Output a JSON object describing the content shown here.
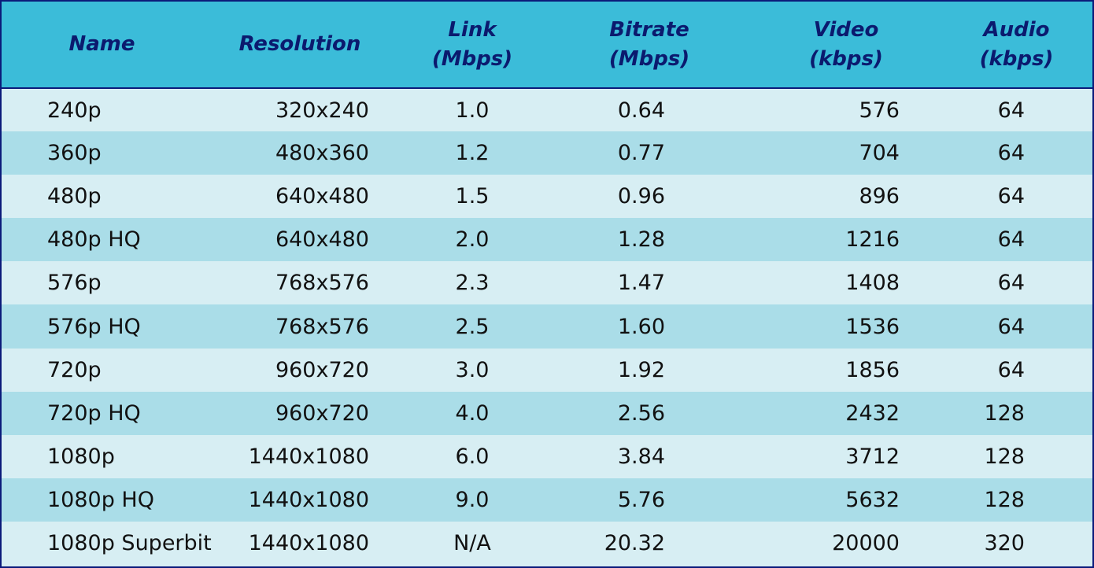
{
  "columns": [
    {
      "line1": "Name",
      "line2": ""
    },
    {
      "line1": "Resolution",
      "line2": ""
    },
    {
      "line1": "Link",
      "line2": "(Mbps)"
    },
    {
      "line1": "Bitrate",
      "line2": "(Mbps)"
    },
    {
      "line1": "Video",
      "line2": "(kbps)"
    },
    {
      "line1": "Audio",
      "line2": "(kbps)"
    }
  ],
  "rows": [
    [
      "240p",
      "320x240",
      "1.0",
      "0.64",
      "576",
      "64"
    ],
    [
      "360p",
      "480x360",
      "1.2",
      "0.77",
      "704",
      "64"
    ],
    [
      "480p",
      "640x480",
      "1.5",
      "0.96",
      "896",
      "64"
    ],
    [
      "480p HQ",
      "640x480",
      "2.0",
      "1.28",
      "1216",
      "64"
    ],
    [
      "576p",
      "768x576",
      "2.3",
      "1.47",
      "1408",
      "64"
    ],
    [
      "576p HQ",
      "768x576",
      "2.5",
      "1.60",
      "1536",
      "64"
    ],
    [
      "720p",
      "960x720",
      "3.0",
      "1.92",
      "1856",
      "64"
    ],
    [
      "720p HQ",
      "960x720",
      "4.0",
      "2.56",
      "2432",
      "128"
    ],
    [
      "1080p",
      "1440x1080",
      "6.0",
      "3.84",
      "3712",
      "128"
    ],
    [
      "1080p HQ",
      "1440x1080",
      "9.0",
      "5.76",
      "5632",
      "128"
    ],
    [
      "1080p Superbit",
      "1440x1080",
      "N/A",
      "20.32",
      "20000",
      "320"
    ]
  ],
  "colors": {
    "header_bg": "#3bbcd9",
    "header_text": "#0b1a6e",
    "row_light": "#d7eef3",
    "row_dark": "#aadde8",
    "border": "#0b1a7a"
  }
}
